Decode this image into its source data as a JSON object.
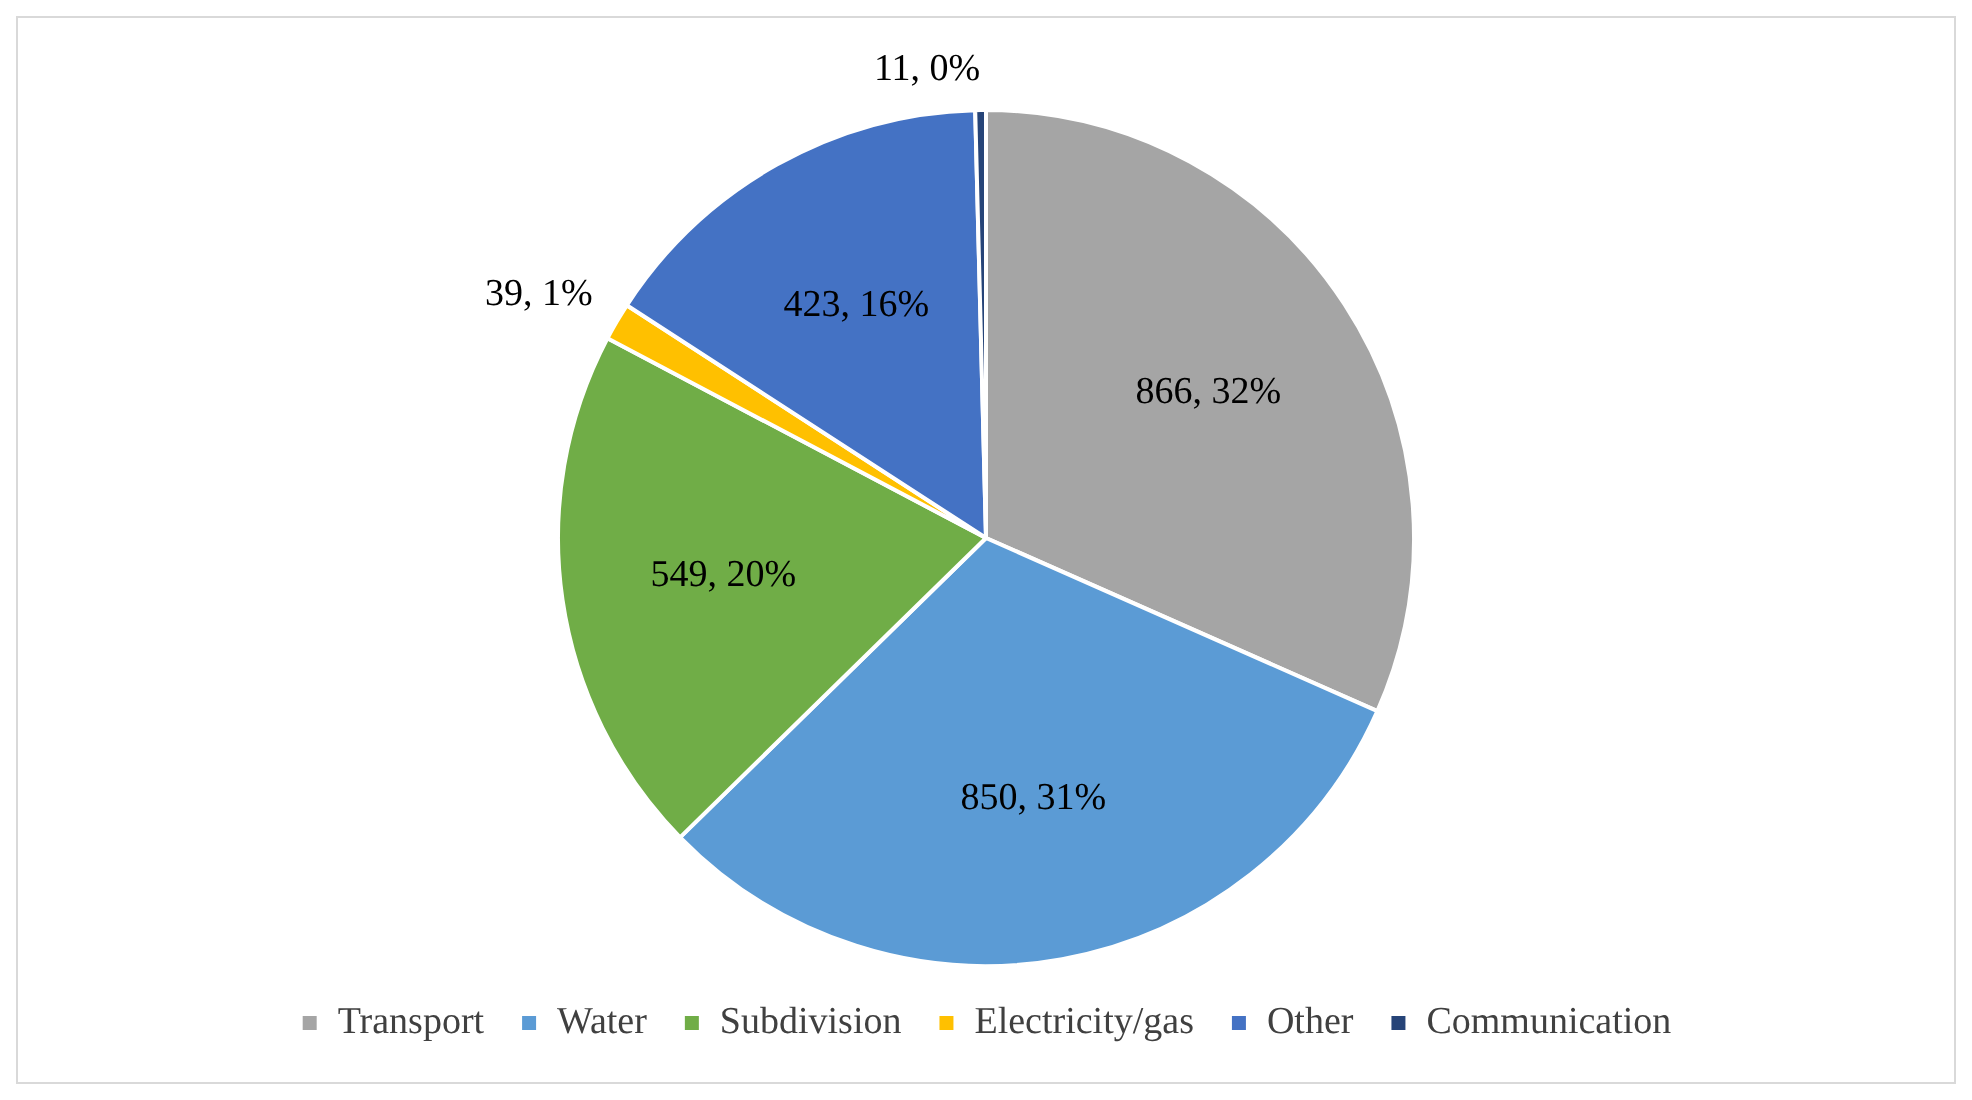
{
  "chart_data": {
    "type": "pie",
    "categories": [
      "Transport",
      "Water",
      "Subdivision",
      "Electricity/gas",
      "Other",
      "Communication"
    ],
    "values": [
      866,
      850,
      549,
      39,
      423,
      11
    ],
    "colors": [
      "#a5a5a5",
      "#5b9bd5",
      "#70ad47",
      "#ffc000",
      "#4472c4",
      "#264478"
    ],
    "value_labels": [
      "866, 32%",
      "850, 31%",
      "549, 20%",
      "39, 1%",
      "423, 16%",
      "11, 0%"
    ],
    "legend": "bottom"
  }
}
